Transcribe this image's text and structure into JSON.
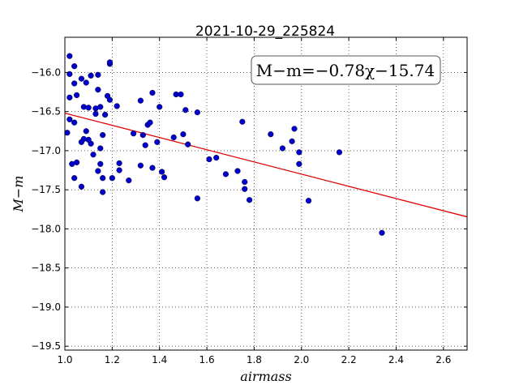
{
  "chart_data": {
    "type": "scatter",
    "title": "2021-10-29_225824",
    "xlabel": "airmass",
    "ylabel": "M−m",
    "xlim": [
      1.0,
      2.7
    ],
    "ylim": [
      -15.55,
      -19.55
    ],
    "y_inverted": true,
    "xticks": [
      1.0,
      1.2,
      1.4,
      1.6,
      1.8,
      2.0,
      2.2,
      2.4,
      2.6
    ],
    "xtick_labels": [
      "1.0",
      "1.2",
      "1.4",
      "1.6",
      "1.8",
      "2.0",
      "2.2",
      "2.4",
      "2.6"
    ],
    "yticks": [
      -16.0,
      -16.5,
      -17.0,
      -17.5,
      -18.0,
      -18.5,
      -19.0,
      -19.5
    ],
    "ytick_labels": [
      "−16.0",
      "−16.5",
      "−17.0",
      "−17.5",
      "−18.0",
      "−18.5",
      "−19.0",
      "−19.5"
    ],
    "grid": true,
    "annotation": "M−m=−0.78χ−15.74",
    "fit_line": {
      "slope": -0.78,
      "intercept": -15.74,
      "color": "#e00000"
    },
    "point_color": "#0000cc",
    "points": [
      [
        1.02,
        -15.79
      ],
      [
        1.04,
        -15.92
      ],
      [
        1.02,
        -16.02
      ],
      [
        1.04,
        -16.14
      ],
      [
        1.05,
        -16.29
      ],
      [
        1.02,
        -16.32
      ],
      [
        1.07,
        -16.08
      ],
      [
        1.09,
        -16.13
      ],
      [
        1.11,
        -16.04
      ],
      [
        1.14,
        -16.03
      ],
      [
        1.14,
        -16.22
      ],
      [
        1.19,
        -15.89
      ],
      [
        1.19,
        -15.87
      ],
      [
        1.08,
        -16.44
      ],
      [
        1.1,
        -16.45
      ],
      [
        1.13,
        -16.46
      ],
      [
        1.15,
        -16.44
      ],
      [
        1.18,
        -16.3
      ],
      [
        1.19,
        -16.35
      ],
      [
        1.13,
        -16.53
      ],
      [
        1.17,
        -16.54
      ],
      [
        1.22,
        -16.43
      ],
      [
        1.02,
        -16.6
      ],
      [
        1.04,
        -16.64
      ],
      [
        1.01,
        -16.77
      ],
      [
        1.09,
        -16.75
      ],
      [
        1.16,
        -16.8
      ],
      [
        1.08,
        -16.85
      ],
      [
        1.1,
        -16.86
      ],
      [
        1.07,
        -16.89
      ],
      [
        1.11,
        -16.91
      ],
      [
        1.12,
        -17.05
      ],
      [
        1.15,
        -16.97
      ],
      [
        1.03,
        -17.17
      ],
      [
        1.05,
        -17.15
      ],
      [
        1.04,
        -17.35
      ],
      [
        1.07,
        -17.46
      ],
      [
        1.14,
        -17.26
      ],
      [
        1.15,
        -17.17
      ],
      [
        1.16,
        -17.35
      ],
      [
        1.2,
        -17.35
      ],
      [
        1.16,
        -17.53
      ],
      [
        1.23,
        -17.16
      ],
      [
        1.23,
        -17.25
      ],
      [
        1.27,
        -17.38
      ],
      [
        1.29,
        -16.78
      ],
      [
        1.32,
        -16.36
      ],
      [
        1.33,
        -16.8
      ],
      [
        1.34,
        -16.93
      ],
      [
        1.35,
        -16.67
      ],
      [
        1.36,
        -16.64
      ],
      [
        1.37,
        -16.26
      ],
      [
        1.4,
        -16.44
      ],
      [
        1.39,
        -16.89
      ],
      [
        1.32,
        -17.19
      ],
      [
        1.37,
        -17.22
      ],
      [
        1.41,
        -17.27
      ],
      [
        1.42,
        -17.34
      ],
      [
        1.46,
        -16.83
      ],
      [
        1.47,
        -16.28
      ],
      [
        1.49,
        -16.28
      ],
      [
        1.5,
        -16.79
      ],
      [
        1.51,
        -16.48
      ],
      [
        1.52,
        -16.92
      ],
      [
        1.56,
        -16.51
      ],
      [
        1.56,
        -17.61
      ],
      [
        1.61,
        -17.11
      ],
      [
        1.64,
        -17.09
      ],
      [
        1.68,
        -17.3
      ],
      [
        1.73,
        -17.26
      ],
      [
        1.75,
        -16.63
      ],
      [
        1.76,
        -17.4
      ],
      [
        1.76,
        -17.49
      ],
      [
        1.78,
        -17.63
      ],
      [
        1.87,
        -16.79
      ],
      [
        1.92,
        -16.97
      ],
      [
        1.96,
        -16.88
      ],
      [
        1.97,
        -16.72
      ],
      [
        1.99,
        -17.02
      ],
      [
        1.99,
        -17.17
      ],
      [
        2.03,
        -17.64
      ],
      [
        2.16,
        -17.02
      ],
      [
        2.34,
        -18.05
      ]
    ]
  }
}
